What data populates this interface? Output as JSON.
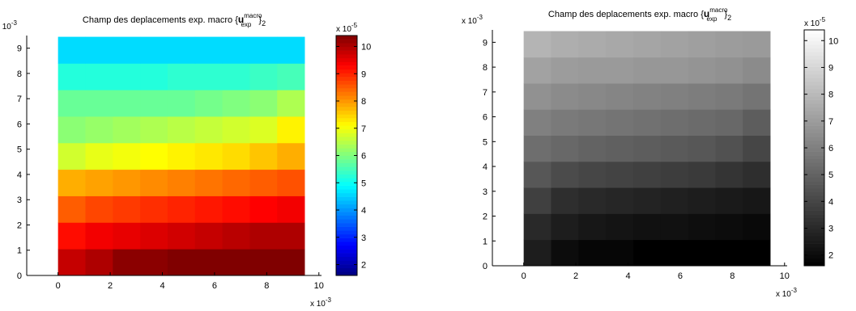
{
  "chart_data": [
    {
      "type": "heatmap",
      "colormap": "jet",
      "title": {
        "prefix": "Champ des deplacements  exp. macro  {",
        "bold": "u",
        "sup": "macro",
        "sub": "exp",
        "close": "}",
        "close_sub": "2"
      },
      "x_ticks": [
        "0",
        "2",
        "4",
        "6",
        "8",
        "10"
      ],
      "y_ticks": [
        "0",
        "1",
        "2",
        "3",
        "4",
        "5",
        "6",
        "7",
        "8",
        "9"
      ],
      "x_exponent": "x 10",
      "x_exponent_power": "-3",
      "y_exponent": "x 10",
      "y_exponent_power": "-3",
      "xlim": [
        -0.0012,
        0.0101
      ],
      "ylim": [
        0,
        0.0095
      ],
      "cell_x_edges": [
        0,
        0.00105,
        0.0021,
        0.00315,
        0.0042,
        0.00525,
        0.0063,
        0.00735,
        0.0084,
        0.00945
      ],
      "cell_y_edges": [
        0,
        0.00105,
        0.0021,
        0.00315,
        0.0042,
        0.00525,
        0.0063,
        0.00735,
        0.0084,
        0.00945
      ],
      "grid": false,
      "z_values": [
        [
          9.8,
          10.0,
          10.3,
          10.3,
          10.4,
          10.4,
          10.4,
          10.4,
          10.4
        ],
        [
          9.2,
          9.4,
          9.5,
          9.6,
          9.7,
          9.8,
          9.9,
          10.0,
          10.0
        ],
        [
          8.5,
          8.7,
          8.8,
          8.9,
          9.0,
          9.1,
          9.2,
          9.3,
          9.4
        ],
        [
          7.8,
          7.9,
          8.0,
          8.1,
          8.2,
          8.3,
          8.4,
          8.5,
          8.6
        ],
        [
          6.7,
          6.9,
          7.0,
          7.1,
          7.2,
          7.3,
          7.4,
          7.6,
          7.8
        ],
        [
          6.1,
          6.2,
          6.3,
          6.4,
          6.5,
          6.6,
          6.7,
          6.8,
          7.2
        ],
        [
          5.8,
          5.8,
          5.8,
          5.8,
          5.8,
          5.9,
          6.0,
          6.1,
          6.4
        ],
        [
          5.2,
          5.2,
          5.2,
          5.2,
          5.3,
          5.3,
          5.3,
          5.4,
          5.5
        ],
        [
          4.6,
          4.6,
          4.6,
          4.6,
          4.6,
          4.6,
          4.6,
          4.6,
          4.6
        ],
        [
          4.5,
          4.1,
          4.0,
          3.9,
          3.9,
          3.9,
          3.7,
          3.6,
          3.3
        ]
      ],
      "z_missing": [
        [
          9,
          9
        ],
        [
          9,
          10
        ]
      ],
      "colorbar": {
        "range": [
          1.6,
          10.4
        ],
        "ticks": [
          "2",
          "3",
          "4",
          "5",
          "6",
          "7",
          "8",
          "9",
          "10"
        ],
        "tick_values": [
          2,
          3,
          4,
          5,
          6,
          7,
          8,
          9,
          10
        ],
        "exponent": "x 10",
        "exponent_power": "-5"
      }
    },
    {
      "type": "heatmap",
      "colormap": "gray",
      "title": {
        "prefix": "Champ des deplacements  exp. macro  {",
        "bold": "u",
        "sup": "macro",
        "sub": "exp",
        "close": "}",
        "close_sub": "2"
      },
      "x_ticks": [
        "0",
        "2",
        "4",
        "6",
        "8",
        "10"
      ],
      "y_ticks": [
        "0",
        "1",
        "2",
        "3",
        "4",
        "5",
        "6",
        "7",
        "8",
        "9"
      ],
      "x_exponent": "x 10",
      "x_exponent_power": "-3",
      "y_exponent": "x 10",
      "y_exponent_power": "-3",
      "xlim": [
        -0.0012,
        0.0101
      ],
      "ylim": [
        0,
        0.0095
      ],
      "cell_x_edges": [
        0,
        0.00105,
        0.0021,
        0.00315,
        0.0042,
        0.00525,
        0.0063,
        0.00735,
        0.0084,
        0.00945
      ],
      "cell_y_edges": [
        0,
        0.00105,
        0.0021,
        0.00315,
        0.0042,
        0.00525,
        0.0063,
        0.00735,
        0.0084,
        0.00945
      ],
      "grid": false,
      "z_values": [
        [
          2.6,
          2.0,
          1.8,
          1.8,
          1.6,
          1.6,
          1.6,
          1.6,
          1.6
        ],
        [
          3.0,
          2.6,
          2.4,
          2.3,
          2.2,
          2.2,
          2.1,
          2.0,
          1.9
        ],
        [
          3.8,
          3.2,
          3.0,
          2.9,
          2.8,
          2.7,
          2.6,
          2.5,
          2.4
        ],
        [
          4.6,
          4.2,
          4.0,
          3.9,
          3.8,
          3.7,
          3.6,
          3.4,
          3.2
        ],
        [
          5.4,
          5.2,
          5.0,
          4.9,
          4.8,
          4.7,
          4.6,
          4.4,
          4.0
        ],
        [
          6.0,
          5.8,
          5.7,
          5.6,
          5.5,
          5.4,
          5.3,
          5.2,
          4.8
        ],
        [
          6.6,
          6.4,
          6.3,
          6.2,
          6.1,
          6.0,
          5.9,
          5.8,
          5.6
        ],
        [
          7.2,
          7.0,
          6.9,
          6.9,
          6.8,
          6.8,
          6.7,
          6.6,
          6.4
        ],
        [
          7.8,
          7.6,
          7.5,
          7.4,
          7.3,
          7.2,
          7.1,
          7.0,
          6.9
        ],
        [
          8.4,
          8.0,
          7.9,
          7.8,
          7.7,
          7.6,
          7.4,
          7.2,
          7.0
        ]
      ],
      "z_missing": [],
      "colorbar": {
        "range": [
          1.6,
          10.4
        ],
        "ticks": [
          "2",
          "3",
          "4",
          "5",
          "6",
          "7",
          "8",
          "9",
          "10"
        ],
        "tick_values": [
          2,
          3,
          4,
          5,
          6,
          7,
          8,
          9,
          10
        ],
        "exponent": "x 10",
        "exponent_power": "-5"
      }
    }
  ]
}
